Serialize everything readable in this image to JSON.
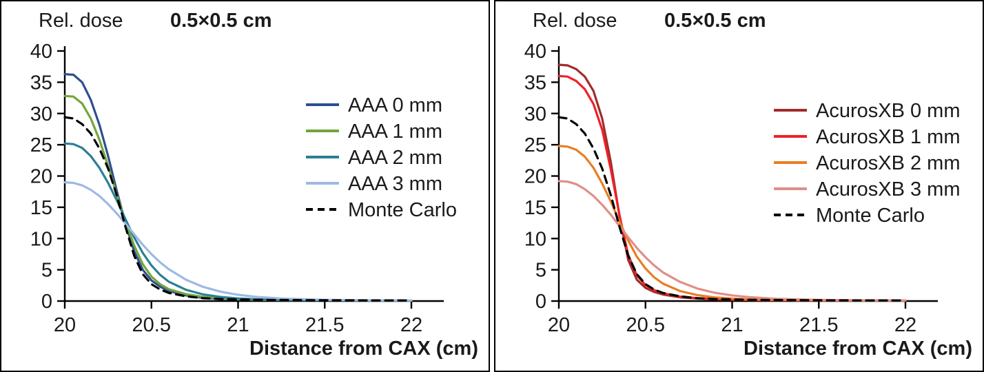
{
  "figure": {
    "description": "Two side-by-side relative dose profile charts for a 0.5x0.5 cm field"
  },
  "chart_data": [
    {
      "type": "line",
      "title": "0.5×0.5 cm",
      "ylabel": "Rel. dose",
      "xlabel": "Distance from CAX (cm)",
      "xlim": [
        20,
        22
      ],
      "ylim": [
        0,
        40
      ],
      "xticks": [
        20,
        20.5,
        21,
        21.5,
        22
      ],
      "yticks": [
        0,
        5,
        10,
        15,
        20,
        25,
        30,
        35,
        40
      ],
      "grid": false,
      "legend_position": "upper-right",
      "x": [
        20,
        20.05,
        20.1,
        20.15,
        20.2,
        20.25,
        20.3,
        20.35,
        20.4,
        20.45,
        20.5,
        20.55,
        20.6,
        20.7,
        20.8,
        20.9,
        21.0,
        21.1,
        21.25,
        21.5,
        21.75,
        22
      ],
      "series": [
        {
          "name": "AAA 0 mm",
          "color": "#2E4F8F",
          "dash": false,
          "values": [
            36.3,
            36.2,
            35.0,
            32.2,
            28.2,
            23.2,
            17.6,
            12.5,
            8.0,
            5.0,
            3.3,
            2.3,
            1.6,
            0.9,
            0.5,
            0.35,
            0.25,
            0.2,
            0.15,
            0.12,
            0.1,
            0.1
          ]
        },
        {
          "name": "AAA 1 mm",
          "color": "#74A53C",
          "dash": false,
          "values": [
            32.8,
            32.7,
            31.6,
            29.2,
            25.8,
            21.6,
            17.0,
            12.8,
            8.9,
            5.9,
            3.9,
            2.7,
            1.9,
            1.1,
            0.65,
            0.42,
            0.3,
            0.22,
            0.16,
            0.12,
            0.1,
            0.1
          ]
        },
        {
          "name": "AAA 2 mm",
          "color": "#2A7F94",
          "dash": false,
          "values": [
            25.2,
            25.1,
            24.5,
            23.2,
            21.3,
            18.9,
            16.1,
            13.1,
            10.2,
            7.7,
            5.7,
            4.2,
            3.1,
            1.8,
            1.05,
            0.65,
            0.42,
            0.3,
            0.2,
            0.13,
            0.1,
            0.1
          ]
        },
        {
          "name": "AAA 3 mm",
          "color": "#9DB9E4",
          "dash": false,
          "values": [
            19.0,
            18.9,
            18.5,
            17.8,
            16.8,
            15.5,
            14.0,
            12.4,
            10.7,
            9.0,
            7.5,
            6.2,
            5.1,
            3.4,
            2.25,
            1.5,
            1.0,
            0.68,
            0.4,
            0.2,
            0.12,
            0.1
          ]
        },
        {
          "name": "Monte Carlo",
          "color": "#000000",
          "dash": true,
          "values": [
            29.4,
            29.2,
            28.3,
            26.8,
            24.4,
            21.2,
            16.9,
            11.9,
            7.3,
            4.3,
            2.7,
            1.85,
            1.3,
            0.75,
            0.45,
            0.32,
            0.25,
            0.2,
            0.16,
            0.12,
            0.1,
            0.1
          ]
        }
      ]
    },
    {
      "type": "line",
      "title": "0.5×0.5 cm",
      "ylabel": "Rel. dose",
      "xlabel": "Distance from CAX (cm)",
      "xlim": [
        20,
        22
      ],
      "ylim": [
        0,
        40
      ],
      "xticks": [
        20,
        20.5,
        21,
        21.5,
        22
      ],
      "yticks": [
        0,
        5,
        10,
        15,
        20,
        25,
        30,
        35,
        40
      ],
      "grid": false,
      "legend_position": "upper-right",
      "x": [
        20,
        20.05,
        20.1,
        20.15,
        20.2,
        20.25,
        20.3,
        20.35,
        20.4,
        20.45,
        20.5,
        20.55,
        20.6,
        20.7,
        20.8,
        20.9,
        21.0,
        21.1,
        21.25,
        21.5,
        21.75,
        22
      ],
      "series": [
        {
          "name": "AcurosXB 0 mm",
          "color": "#A02C2C",
          "dash": false,
          "values": [
            37.8,
            37.7,
            37.1,
            35.9,
            33.6,
            29.2,
            22.2,
            13.6,
            6.6,
            3.4,
            2.1,
            1.45,
            1.05,
            0.6,
            0.4,
            0.28,
            0.2,
            0.16,
            0.12,
            0.1,
            0.1,
            0.1
          ]
        },
        {
          "name": "AcurosXB 1 mm",
          "color": "#EC2227",
          "dash": false,
          "values": [
            36.0,
            35.9,
            35.2,
            33.9,
            31.5,
            27.4,
            21.0,
            13.8,
            7.4,
            4.1,
            2.55,
            1.75,
            1.25,
            0.72,
            0.46,
            0.32,
            0.24,
            0.18,
            0.13,
            0.1,
            0.1,
            0.1
          ]
        },
        {
          "name": "AcurosXB 2 mm",
          "color": "#E87E23",
          "dash": false,
          "values": [
            24.8,
            24.7,
            24.2,
            23.1,
            21.3,
            18.8,
            15.9,
            12.7,
            9.7,
            7.1,
            5.2,
            3.8,
            2.8,
            1.6,
            0.95,
            0.58,
            0.4,
            0.28,
            0.18,
            0.12,
            0.1,
            0.1
          ]
        },
        {
          "name": "AcurosXB 3 mm",
          "color": "#E08E88",
          "dash": false,
          "values": [
            19.2,
            19.1,
            18.7,
            17.9,
            16.8,
            15.4,
            13.8,
            12.0,
            10.2,
            8.5,
            7.0,
            5.7,
            4.6,
            3.05,
            2.0,
            1.32,
            0.9,
            0.62,
            0.36,
            0.18,
            0.11,
            0.1
          ]
        },
        {
          "name": "Monte Carlo",
          "color": "#000000",
          "dash": true,
          "values": [
            29.4,
            29.2,
            28.3,
            26.8,
            24.4,
            21.2,
            16.9,
            11.9,
            7.3,
            4.3,
            2.7,
            1.85,
            1.3,
            0.75,
            0.45,
            0.32,
            0.25,
            0.2,
            0.16,
            0.12,
            0.1,
            0.1
          ]
        }
      ]
    }
  ]
}
